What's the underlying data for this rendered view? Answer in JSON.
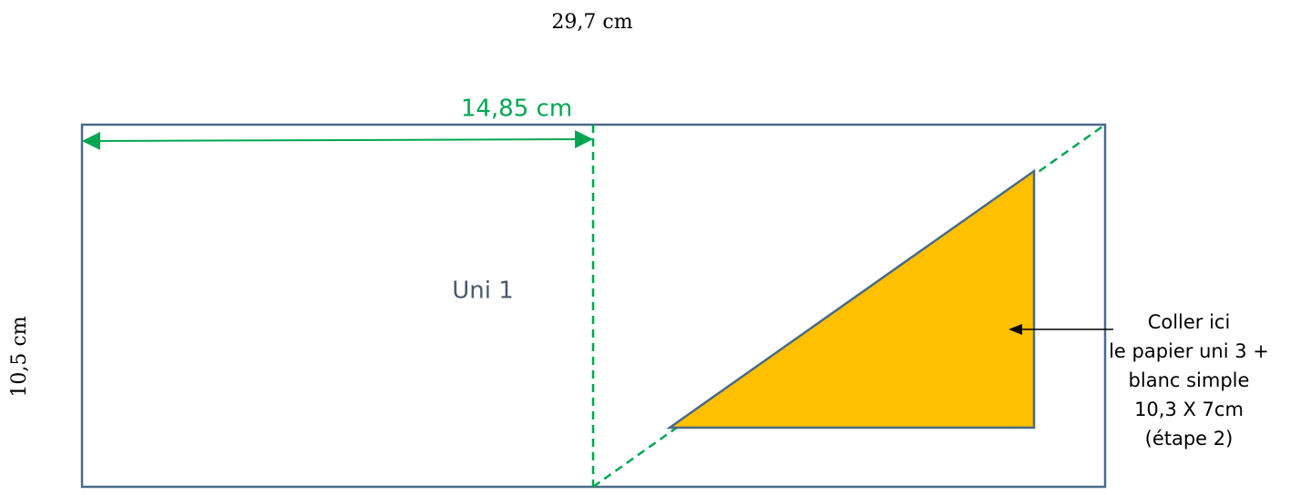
{
  "width_label": "29,7 cm",
  "height_label": "10,5 cm",
  "half_label": "14,85 cm",
  "panel_label": "Uni 1",
  "instruction": [
    "Coller ici",
    "le papier uni 3 +",
    "blanc simple",
    "10,3 X 7cm",
    "(étape 2)"
  ]
}
